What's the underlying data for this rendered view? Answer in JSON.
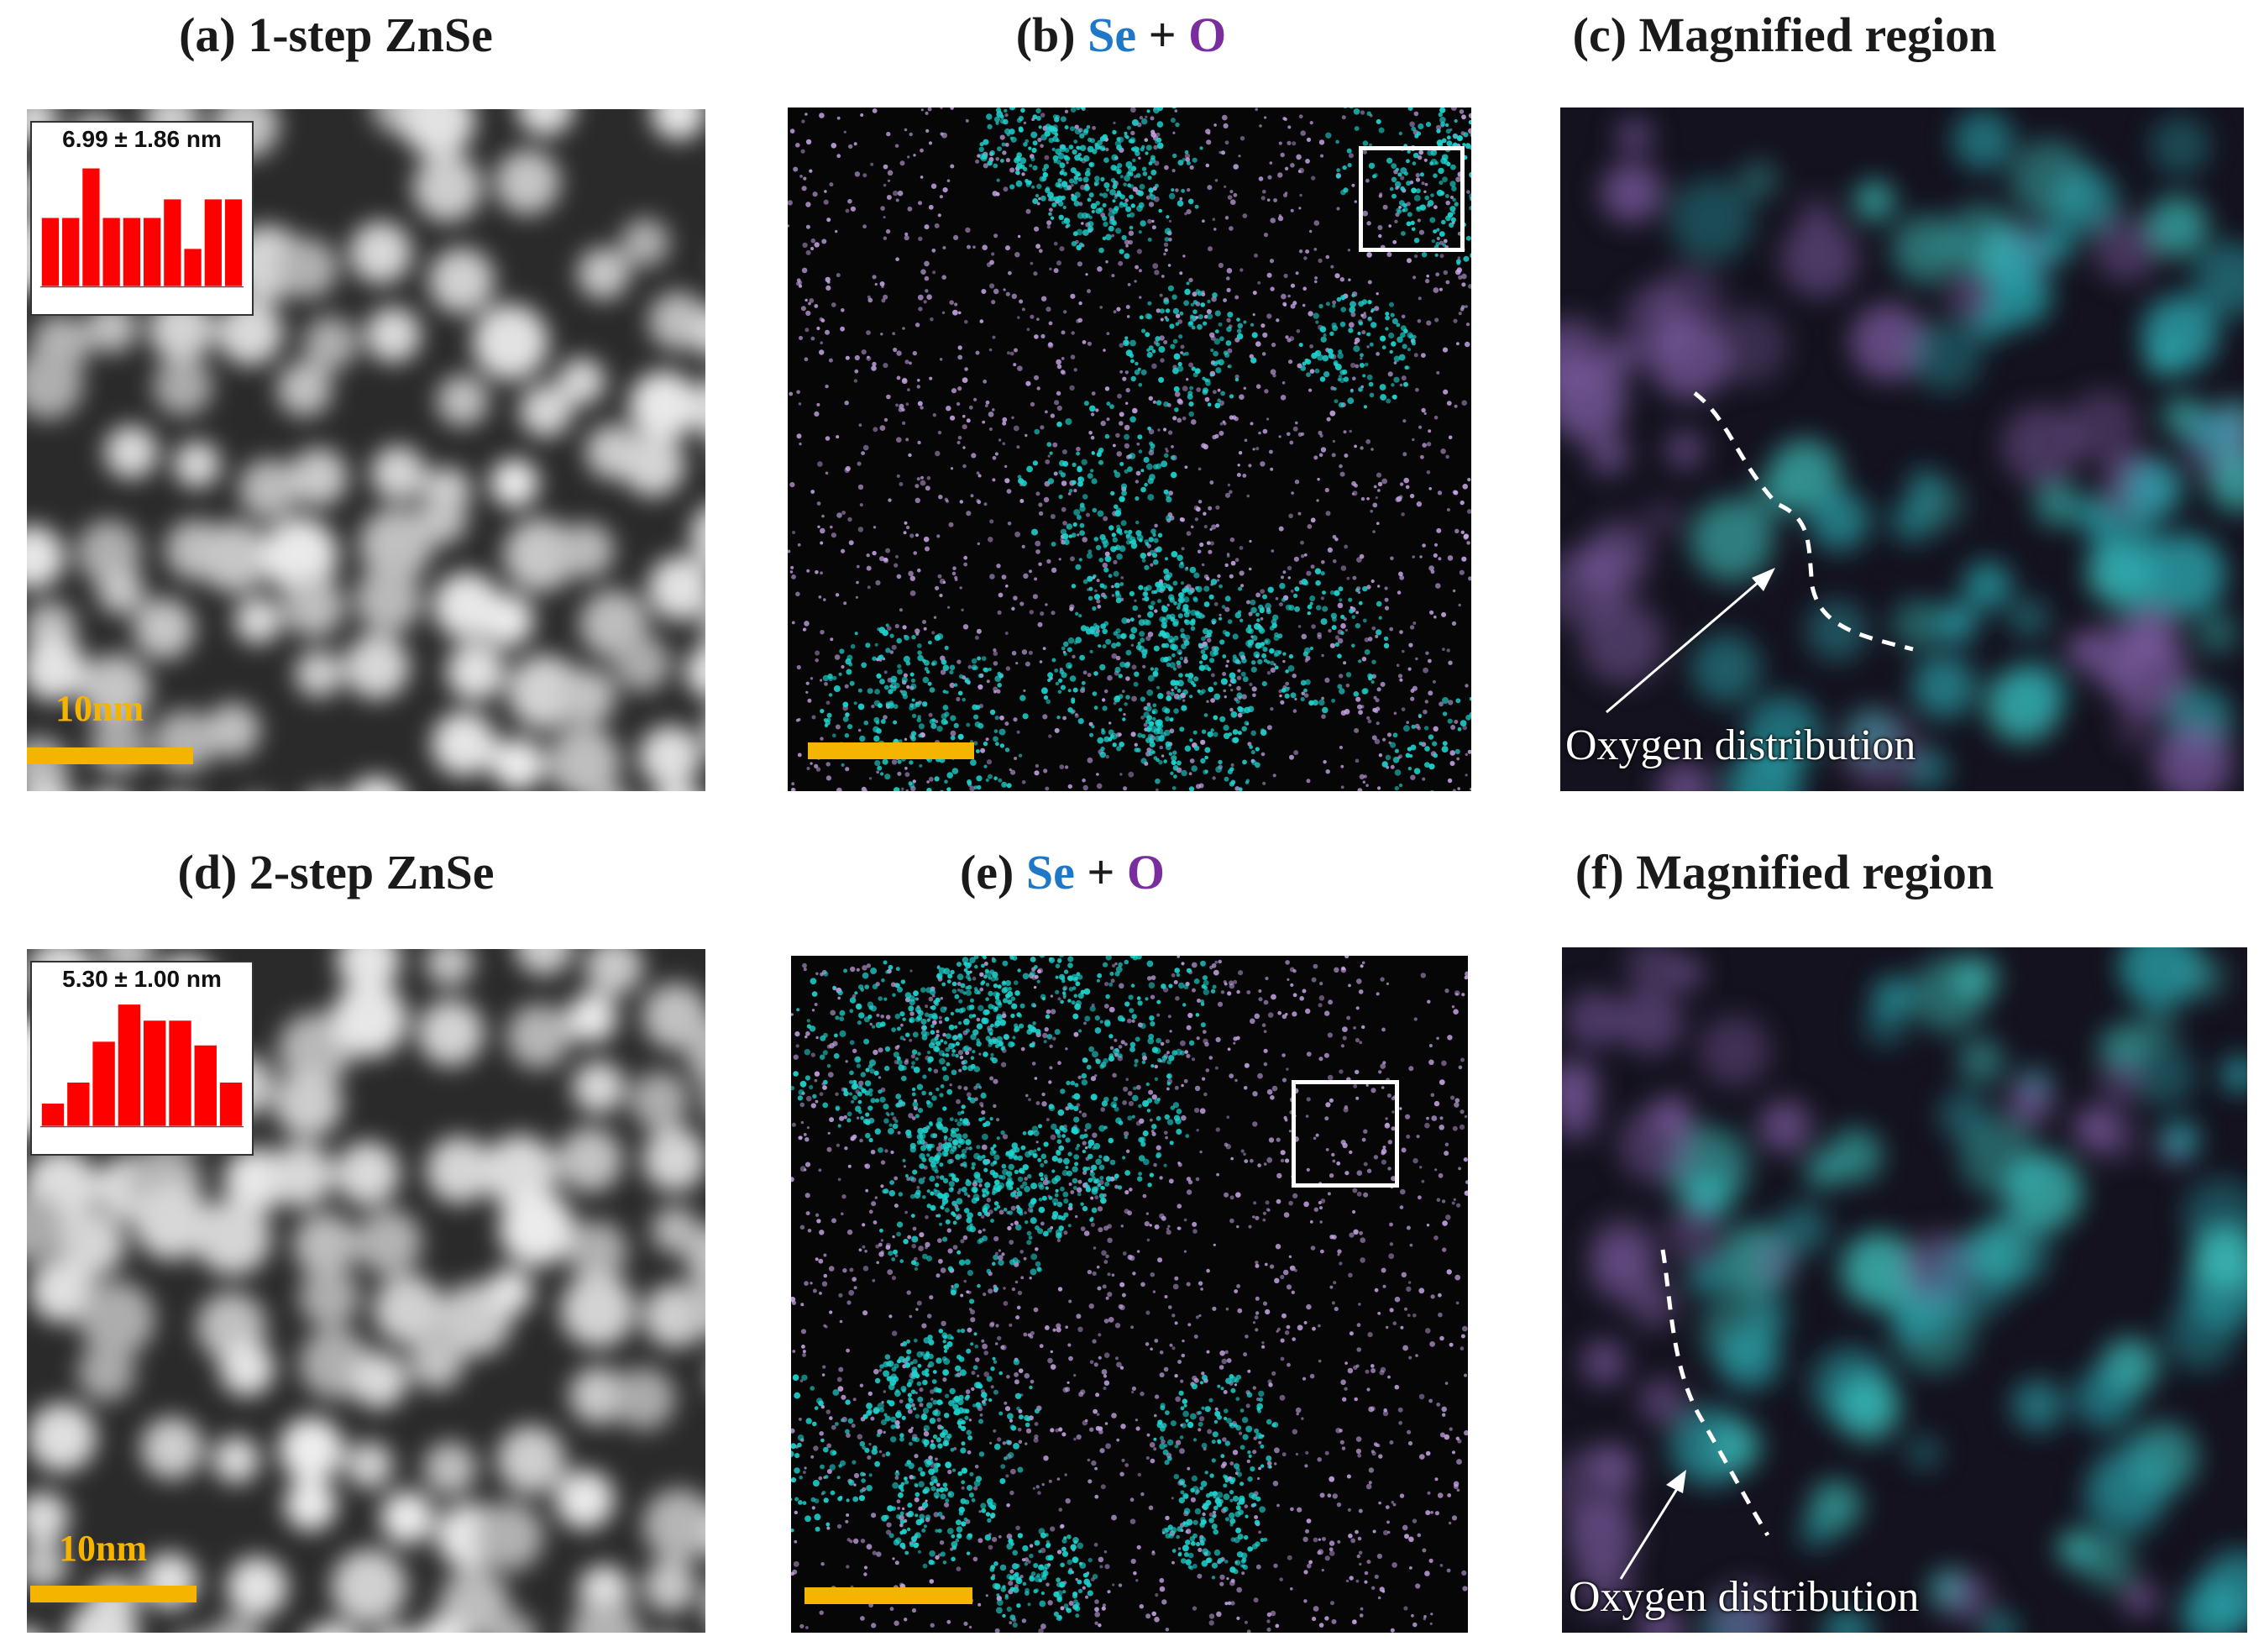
{
  "titles": {
    "a": "(a) 1-step ZnSe",
    "b_prefix": "(b) ",
    "c": "(c) Magnified region",
    "d": "(d) 2-step ZnSe",
    "e_prefix": "(e) ",
    "f": "(f) Magnified region",
    "se": "Se",
    "plus": " + ",
    "o": "O"
  },
  "insets": {
    "a": {
      "label": "6.99 ± 1.86 nm",
      "bars": [
        0.55,
        0.55,
        0.95,
        0.55,
        0.55,
        0.55,
        0.7,
        0.3,
        0.7,
        0.7
      ]
    },
    "d": {
      "label": "5.30 ± 1.00 nm",
      "bars": [
        0.18,
        0.35,
        0.68,
        0.98,
        0.85,
        0.85,
        0.65,
        0.35
      ]
    }
  },
  "scale": {
    "label": "10nm"
  },
  "annotation": {
    "oxygen": "Oxygen distribution"
  },
  "colors": {
    "se": "#1f77c8",
    "o": "#7a2e9e",
    "cyan": "#1fd4d0",
    "violet": "#c9a6e8",
    "scalebar": "#f5b400",
    "hist": "#ff0000"
  }
}
